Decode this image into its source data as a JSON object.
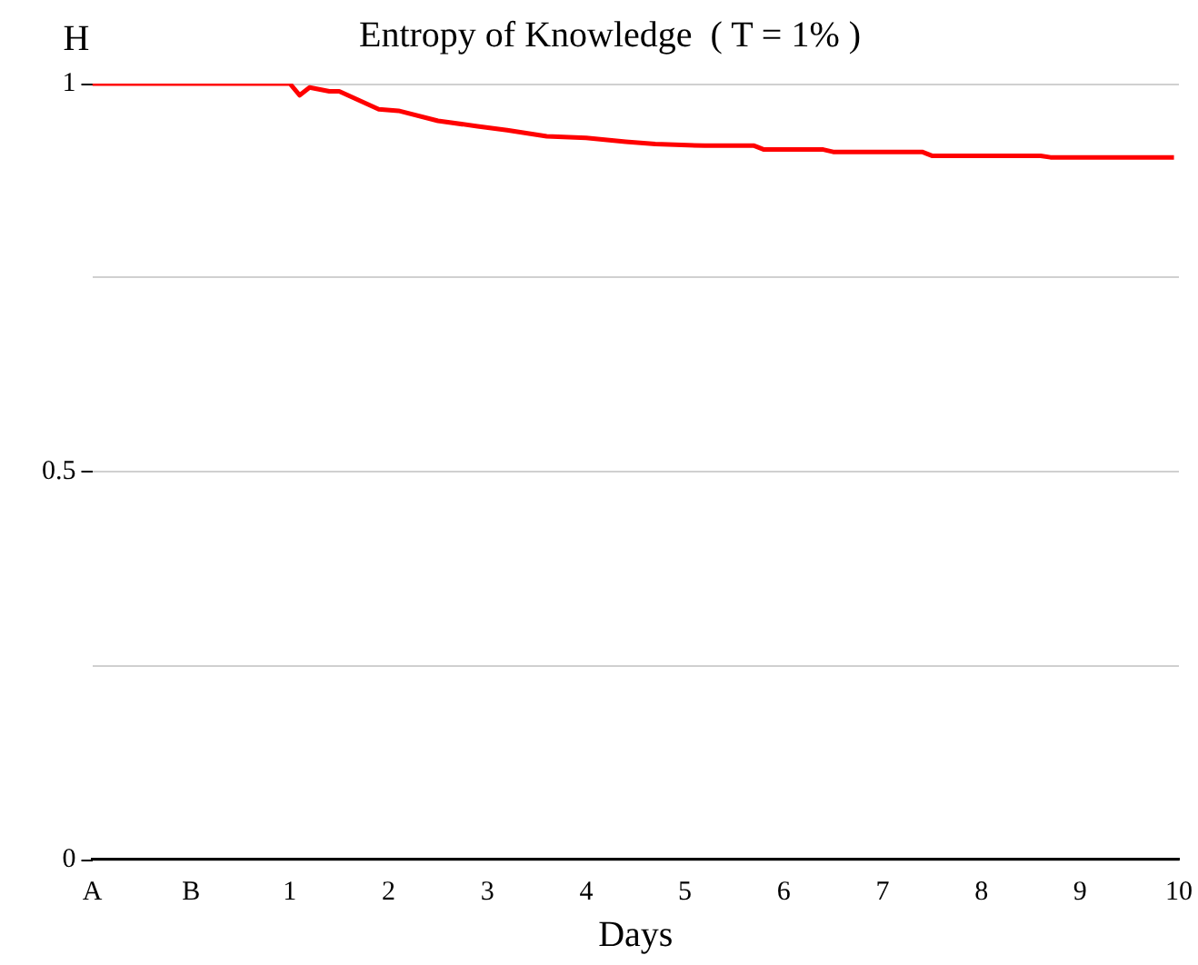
{
  "chart_data": {
    "type": "line",
    "title": "Entropy of Knowledge  ( T = 1% )",
    "xlabel": "Days",
    "ylabel": "H",
    "xlim": [
      -1,
      10
    ],
    "xticks": [
      {
        "value": -1,
        "label": "A"
      },
      {
        "value": 0,
        "label": "B"
      },
      1,
      2,
      3,
      4,
      5,
      6,
      7,
      8,
      9,
      10
    ],
    "ylim": [
      0,
      1
    ],
    "yticks": [
      0,
      {
        "value": 0.25,
        "label": null
      },
      0.5,
      {
        "value": 0.75,
        "label": null
      },
      1
    ],
    "grid": "y",
    "legend": false,
    "marker": "none",
    "line_style": "solid",
    "series": [
      {
        "color": "#ff0000",
        "x": [
          -1,
          1,
          1.1,
          1.2,
          1.4,
          1.5,
          1.9,
          2.1,
          2.5,
          2.9,
          3.2,
          3.6,
          4,
          4.4,
          4.7,
          5.2,
          5.7,
          5.8,
          6.4,
          6.5,
          7.4,
          7.5,
          8.6,
          8.7,
          9.95
        ],
        "values": [
          1,
          1,
          0.985,
          0.995,
          0.99,
          0.99,
          0.967,
          0.965,
          0.952,
          0.945,
          0.94,
          0.932,
          0.93,
          0.925,
          0.922,
          0.92,
          0.92,
          0.915,
          0.915,
          0.912,
          0.912,
          0.907,
          0.907,
          0.905,
          0.905
        ]
      }
    ]
  }
}
